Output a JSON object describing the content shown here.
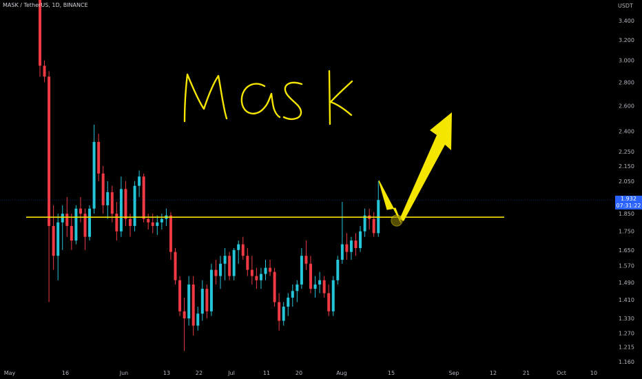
{
  "header": {
    "symbol_text": "MASK / TetherUS, 1D, BINANCE"
  },
  "price_axis": {
    "currency": "USDT",
    "last_price": "1.932",
    "countdown": "07:31:22"
  },
  "annotations": {
    "title_text": "MASK",
    "colors": {
      "annotation": "#f5e600",
      "support_line": "#f5e600",
      "up_candle": "#26c6da",
      "down_candle": "#ef3a43",
      "last_price_badge": "#2962ff"
    }
  },
  "chart_data": {
    "type": "candlestick",
    "title": "MASK / TetherUS, 1D, BINANCE",
    "y_scale": "log",
    "ylim": [
      1.13,
      4.0
    ],
    "y_ticks": [
      "3.400",
      "3.200",
      "3.000",
      "2.800",
      "2.600",
      "2.400",
      "2.250",
      "2.150",
      "2.050",
      "1.850",
      "1.750",
      "1.650",
      "1.570",
      "1.490",
      "1.410",
      "1.330",
      "1.270",
      "1.215",
      "1.160"
    ],
    "x_tick_labels": [
      "May",
      "16",
      "Jun",
      "13",
      "22",
      "Jul",
      "11",
      "20",
      "Aug",
      "15",
      "Sep",
      "12",
      "21",
      "Oct",
      "10"
    ],
    "support_level": 1.83,
    "last_price": 1.932,
    "candles_ohlc": [
      [
        3.65,
        3.65,
        2.85,
        2.95
      ],
      [
        2.95,
        3.0,
        2.8,
        2.85
      ],
      [
        2.85,
        2.9,
        1.4,
        1.78
      ],
      [
        1.78,
        1.9,
        1.55,
        1.62
      ],
      [
        1.62,
        1.85,
        1.5,
        1.8
      ],
      [
        1.8,
        1.9,
        1.65,
        1.85
      ],
      [
        1.85,
        1.95,
        1.72,
        1.78
      ],
      [
        1.78,
        1.85,
        1.65,
        1.7
      ],
      [
        1.7,
        1.9,
        1.68,
        1.88
      ],
      [
        1.88,
        1.95,
        1.8,
        1.85
      ],
      [
        1.85,
        1.88,
        1.65,
        1.72
      ],
      [
        1.72,
        1.9,
        1.7,
        1.88
      ],
      [
        1.88,
        2.45,
        1.85,
        2.32
      ],
      [
        2.32,
        2.38,
        2.05,
        2.1
      ],
      [
        2.1,
        2.15,
        1.85,
        1.9
      ],
      [
        1.9,
        2.05,
        1.82,
        1.98
      ],
      [
        1.98,
        2.02,
        1.8,
        1.85
      ],
      [
        1.85,
        1.92,
        1.7,
        1.75
      ],
      [
        1.75,
        2.08,
        1.72,
        2.0
      ],
      [
        2.0,
        2.05,
        1.78,
        1.82
      ],
      [
        1.82,
        1.85,
        1.72,
        1.78
      ],
      [
        1.78,
        2.05,
        1.75,
        2.02
      ],
      [
        2.02,
        2.12,
        1.95,
        2.08
      ],
      [
        2.08,
        2.1,
        1.8,
        1.82
      ],
      [
        1.82,
        1.85,
        1.76,
        1.8
      ],
      [
        1.8,
        1.85,
        1.74,
        1.78
      ],
      [
        1.78,
        1.84,
        1.73,
        1.8
      ],
      [
        1.8,
        1.85,
        1.76,
        1.82
      ],
      [
        1.82,
        1.88,
        1.78,
        1.84
      ],
      [
        1.84,
        1.86,
        1.6,
        1.64
      ],
      [
        1.64,
        1.66,
        1.48,
        1.5
      ],
      [
        1.5,
        1.52,
        1.34,
        1.36
      ],
      [
        1.36,
        1.42,
        1.2,
        1.33
      ],
      [
        1.33,
        1.52,
        1.3,
        1.48
      ],
      [
        1.48,
        1.52,
        1.26,
        1.3
      ],
      [
        1.3,
        1.38,
        1.28,
        1.35
      ],
      [
        1.35,
        1.5,
        1.32,
        1.46
      ],
      [
        1.46,
        1.48,
        1.33,
        1.36
      ],
      [
        1.36,
        1.58,
        1.34,
        1.55
      ],
      [
        1.55,
        1.6,
        1.48,
        1.52
      ],
      [
        1.52,
        1.62,
        1.46,
        1.58
      ],
      [
        1.58,
        1.66,
        1.5,
        1.62
      ],
      [
        1.62,
        1.64,
        1.5,
        1.52
      ],
      [
        1.52,
        1.66,
        1.5,
        1.65
      ],
      [
        1.65,
        1.7,
        1.58,
        1.68
      ],
      [
        1.68,
        1.72,
        1.6,
        1.62
      ],
      [
        1.62,
        1.66,
        1.52,
        1.55
      ],
      [
        1.55,
        1.62,
        1.48,
        1.52
      ],
      [
        1.52,
        1.56,
        1.46,
        1.5
      ],
      [
        1.5,
        1.56,
        1.46,
        1.53
      ],
      [
        1.53,
        1.6,
        1.5,
        1.56
      ],
      [
        1.56,
        1.6,
        1.52,
        1.54
      ],
      [
        1.54,
        1.56,
        1.38,
        1.4
      ],
      [
        1.4,
        1.44,
        1.28,
        1.32
      ],
      [
        1.32,
        1.4,
        1.3,
        1.38
      ],
      [
        1.38,
        1.44,
        1.34,
        1.42
      ],
      [
        1.42,
        1.48,
        1.38,
        1.45
      ],
      [
        1.45,
        1.5,
        1.4,
        1.48
      ],
      [
        1.48,
        1.66,
        1.46,
        1.62
      ],
      [
        1.62,
        1.7,
        1.55,
        1.58
      ],
      [
        1.58,
        1.62,
        1.44,
        1.46
      ],
      [
        1.46,
        1.52,
        1.42,
        1.48
      ],
      [
        1.48,
        1.54,
        1.44,
        1.5
      ],
      [
        1.5,
        1.52,
        1.42,
        1.44
      ],
      [
        1.44,
        1.48,
        1.34,
        1.36
      ],
      [
        1.36,
        1.52,
        1.34,
        1.5
      ],
      [
        1.5,
        1.62,
        1.48,
        1.6
      ],
      [
        1.6,
        1.92,
        1.58,
        1.68
      ],
      [
        1.68,
        1.74,
        1.6,
        1.64
      ],
      [
        1.64,
        1.72,
        1.6,
        1.7
      ],
      [
        1.7,
        1.74,
        1.62,
        1.66
      ],
      [
        1.66,
        1.78,
        1.64,
        1.75
      ],
      [
        1.75,
        1.88,
        1.72,
        1.84
      ],
      [
        1.84,
        1.88,
        1.76,
        1.82
      ],
      [
        1.82,
        1.86,
        1.72,
        1.74
      ],
      [
        1.74,
        2.05,
        1.72,
        1.932
      ]
    ]
  }
}
